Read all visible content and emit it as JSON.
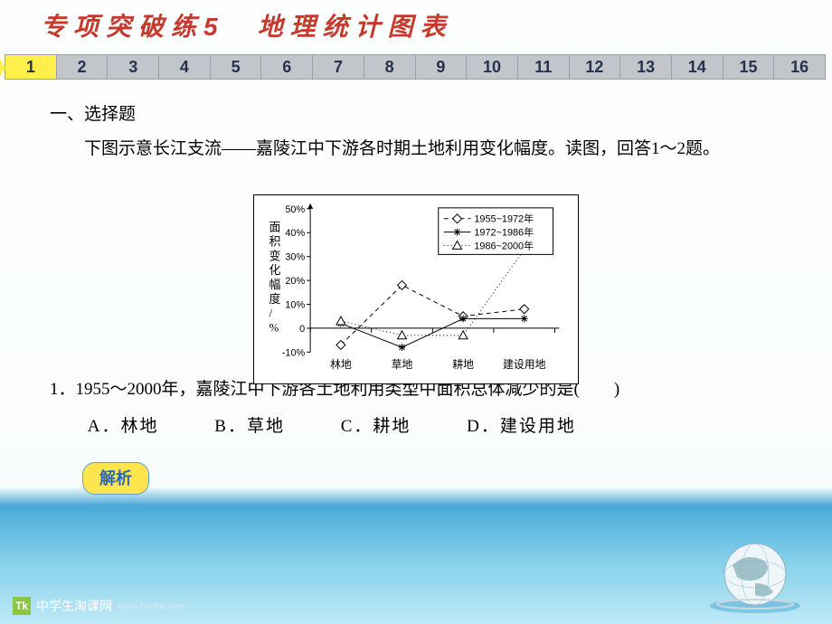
{
  "header": {
    "title": "专项突破练5　地理统计图表"
  },
  "nav": {
    "items": [
      "1",
      "2",
      "3",
      "4",
      "5",
      "6",
      "7",
      "8",
      "9",
      "10",
      "11",
      "12",
      "13",
      "14",
      "15",
      "16"
    ],
    "active_index": 0
  },
  "section": {
    "heading": "一、选择题",
    "intro": "下图示意长江支流——嘉陵江中下游各时期土地利用变化幅度。读图，回答1～2题。"
  },
  "question": {
    "stem": "1．1955～2000年，嘉陵江中下游各土地利用类型中面积总体减少的是(　　)",
    "options": [
      {
        "label": "A",
        "text": "林地"
      },
      {
        "label": "B",
        "text": "草地"
      },
      {
        "label": "C",
        "text": "耕地"
      },
      {
        "label": "D",
        "text": "建设用地"
      }
    ],
    "analysis_btn": "解析"
  },
  "chart": {
    "type": "line",
    "ylabel": "面积变化幅度/%",
    "y_ticks": [
      -10,
      0,
      10,
      20,
      30,
      40,
      50
    ],
    "y_tick_labels": [
      "-10%",
      "0",
      "10%",
      "20%",
      "30%",
      "40%",
      "50%"
    ],
    "categories": [
      "林地",
      "草地",
      "耕地",
      "建设用地"
    ],
    "series": [
      {
        "name": "1955~1972年",
        "marker": "diamond",
        "dash": "5,4",
        "color": "#000000",
        "values": [
          -7,
          18,
          5,
          8
        ]
      },
      {
        "name": "1972~1986年",
        "marker": "star",
        "dash": "",
        "color": "#000000",
        "values": [
          2,
          -8,
          4,
          4
        ]
      },
      {
        "name": "1986~2000年",
        "marker": "triangle",
        "dash": "1,3",
        "color": "#000000",
        "values": [
          3,
          -3,
          -3,
          33
        ]
      }
    ],
    "legend_pos": "top-right",
    "background": "#ffffff",
    "axis_color": "#000000",
    "font_size": 11
  },
  "footer": {
    "site_name": "中学生淘课网",
    "site_url": "www.zxstkw.com"
  }
}
